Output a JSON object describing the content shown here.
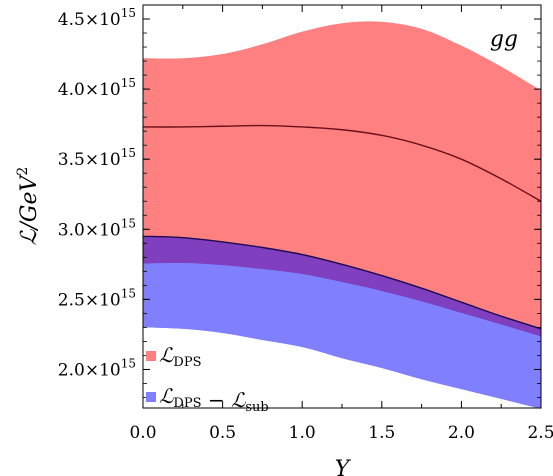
{
  "chart_data": {
    "type": "area",
    "annotation": "gg",
    "xlabel": "Y",
    "ylabel_main": "ℒ/GeV",
    "ylabel_sup": "2",
    "xlim": [
      0,
      2.5
    ],
    "ylim": [
      1725000000000000.0,
      4600000000000000.0
    ],
    "x_ticks": [
      0.0,
      0.5,
      1.0,
      1.5,
      2.0,
      2.5
    ],
    "x_tick_labels": [
      "0.0",
      "0.5",
      "1.0",
      "1.5",
      "2.0",
      "2.5"
    ],
    "y_ticks": [
      2000000000000000.0,
      2500000000000000.0,
      3000000000000000.0,
      3500000000000000.0,
      4000000000000000.0,
      4500000000000000.0
    ],
    "y_tick_labels": [
      {
        "mantissa": "2.0",
        "base": "×10",
        "exp": "15"
      },
      {
        "mantissa": "2.5",
        "base": "×10",
        "exp": "15"
      },
      {
        "mantissa": "3.0",
        "base": "×10",
        "exp": "15"
      },
      {
        "mantissa": "3.5",
        "base": "×10",
        "exp": "15"
      },
      {
        "mantissa": "4.0",
        "base": "×10",
        "exp": "15"
      },
      {
        "mantissa": "4.5",
        "base": "×10",
        "exp": "15"
      }
    ],
    "x": [
      0.0,
      0.25,
      0.5,
      0.75,
      1.0,
      1.25,
      1.5,
      1.75,
      2.0,
      2.25,
      2.5
    ],
    "series": [
      {
        "legend": "ℒ_DPS",
        "color": "#ff8080",
        "line_color": "#6b0f1a",
        "upper": [
          4220000000000000.0,
          4220000000000000.0,
          4250000000000000.0,
          4320000000000000.0,
          4410000000000000.0,
          4470000000000000.0,
          4480000000000000.0,
          4430000000000000.0,
          4310000000000000.0,
          4160000000000000.0,
          3990000000000000.0
        ],
        "central": [
          3730000000000000.0,
          3730000000000000.0,
          3735000000000000.0,
          3740000000000000.0,
          3730000000000000.0,
          3710000000000000.0,
          3670000000000000.0,
          3600000000000000.0,
          3500000000000000.0,
          3360000000000000.0,
          3200000000000000.0
        ],
        "lower": [
          2950000000000000.0,
          2940000000000000.0,
          2910000000000000.0,
          2870000000000000.0,
          2820000000000000.0,
          2750000000000000.0,
          2670000000000000.0,
          2580000000000000.0,
          2480000000000000.0,
          2380000000000000.0,
          2290000000000000.0
        ]
      },
      {
        "legend": "ℒ_DPS − ℒ_sub",
        "color": "#8080ff",
        "overlap_color": "#7f3fbf",
        "upper": [
          2950000000000000.0,
          2940000000000000.0,
          2910000000000000.0,
          2870000000000000.0,
          2820000000000000.0,
          2750000000000000.0,
          2670000000000000.0,
          2580000000000000.0,
          2480000000000000.0,
          2380000000000000.0,
          2280000000000000.0
        ],
        "lower": [
          2300000000000000.0,
          2290000000000000.0,
          2260000000000000.0,
          2210000000000000.0,
          2160000000000000.0,
          2080000000000000.0,
          2010000000000000.0,
          1930000000000000.0,
          1860000000000000.0,
          1790000000000000.0,
          1720000000000000.0
        ]
      }
    ],
    "legend_position": "bottom-left",
    "annotation_position": "top-right"
  }
}
